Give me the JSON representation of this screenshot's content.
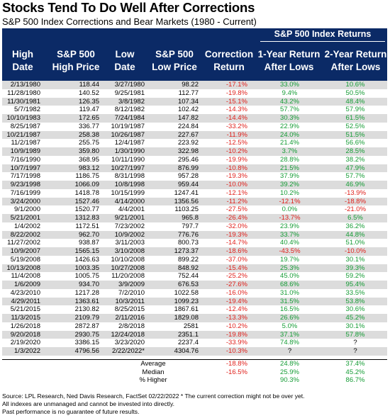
{
  "title": "Stocks Tend To Do Well After Corrections",
  "subtitle": "S&P 500 Index Corrections and Bear Markets (1980 - Current)",
  "header": {
    "group_label": "S&P 500 Index Returns",
    "columns": [
      [
        "High",
        "Date"
      ],
      [
        "S&P 500",
        "High Price"
      ],
      [
        "Low",
        "Date"
      ],
      [
        "S&P 500",
        "Low Price"
      ],
      [
        "Correction",
        "Return"
      ],
      [
        "1-Year Return",
        "After Lows"
      ],
      [
        "2-Year Return",
        "After Lows"
      ]
    ]
  },
  "colors": {
    "header_bg": "#0b2a66",
    "negative": "#e0201b",
    "positive": "#159c35",
    "stripe": "#dcdcdc"
  },
  "rows": [
    [
      "2/13/1980",
      "118.44",
      "3/27/1980",
      "98.22",
      "-17.1%",
      "33.0%",
      "10.6%"
    ],
    [
      "11/28/1980",
      "140.52",
      "9/25/1981",
      "112.77",
      "-19.8%",
      "9.4%",
      "50.5%"
    ],
    [
      "11/30/1981",
      "126.35",
      "3/8/1982",
      "107.34",
      "-15.1%",
      "43.2%",
      "48.4%"
    ],
    [
      "5/7/1982",
      "119.47",
      "8/12/1982",
      "102.42",
      "-14.3%",
      "57.7%",
      "57.9%"
    ],
    [
      "10/10/1983",
      "172.65",
      "7/24/1984",
      "147.82",
      "-14.4%",
      "30.3%",
      "61.5%"
    ],
    [
      "8/25/1987",
      "336.77",
      "10/19/1987",
      "224.84",
      "-33.2%",
      "22.9%",
      "52.5%"
    ],
    [
      "10/21/1987",
      "258.38",
      "10/26/1987",
      "227.67",
      "-11.9%",
      "24.0%",
      "51.5%"
    ],
    [
      "11/2/1987",
      "255.75",
      "12/4/1987",
      "223.92",
      "-12.5%",
      "21.4%",
      "56.6%"
    ],
    [
      "10/9/1989",
      "359.80",
      "1/30/1990",
      "322.98",
      "-10.2%",
      "3.7%",
      "28.5%"
    ],
    [
      "7/16/1990",
      "368.95",
      "10/11/1990",
      "295.46",
      "-19.9%",
      "28.8%",
      "38.2%"
    ],
    [
      "10/7/1997",
      "983.12",
      "10/27/1997",
      "876.99",
      "-10.8%",
      "21.5%",
      "47.9%"
    ],
    [
      "7/17/1998",
      "1186.75",
      "8/31/1998",
      "957.28",
      "-19.3%",
      "37.9%",
      "57.7%"
    ],
    [
      "9/23/1998",
      "1066.09",
      "10/8/1998",
      "959.44",
      "-10.0%",
      "39.2%",
      "46.9%"
    ],
    [
      "7/16/1999",
      "1418.78",
      "10/15/1999",
      "1247.41",
      "-12.1%",
      "10.2%",
      "-13.9%"
    ],
    [
      "3/24/2000",
      "1527.46",
      "4/14/2000",
      "1356.56",
      "-11.2%",
      "-12.1%",
      "-18.8%"
    ],
    [
      "9/1/2000",
      "1520.77",
      "4/4/2001",
      "1103.25",
      "-27.5%",
      "0.0%",
      "-21.0%"
    ],
    [
      "5/21/2001",
      "1312.83",
      "9/21/2001",
      "965.8",
      "-26.4%",
      "-13.7%",
      "6.5%"
    ],
    [
      "1/4/2002",
      "1172.51",
      "7/23/2002",
      "797.7",
      "-32.0%",
      "23.9%",
      "36.2%"
    ],
    [
      "8/22/2002",
      "962.70",
      "10/9/2002",
      "776.76",
      "-19.3%",
      "33.7%",
      "44.8%"
    ],
    [
      "11/27/2002",
      "938.87",
      "3/11/2003",
      "800.73",
      "-14.7%",
      "40.4%",
      "51.0%"
    ],
    [
      "10/9/2007",
      "1565.15",
      "3/10/2008",
      "1273.37",
      "-18.6%",
      "-43.5%",
      "-10.0%"
    ],
    [
      "5/19/2008",
      "1426.63",
      "10/10/2008",
      "899.22",
      "-37.0%",
      "19.7%",
      "30.1%"
    ],
    [
      "10/13/2008",
      "1003.35",
      "10/27/2008",
      "848.92",
      "-15.4%",
      "25.3%",
      "39.3%"
    ],
    [
      "11/4/2008",
      "1005.75",
      "11/20/2008",
      "752.44",
      "-25.2%",
      "45.0%",
      "59.2%"
    ],
    [
      "1/6/2009",
      "934.70",
      "3/9/2009",
      "676.53",
      "-27.6%",
      "68.6%",
      "95.4%"
    ],
    [
      "4/23/2010",
      "1217.28",
      "7/2/2010",
      "1022.58",
      "-16.0%",
      "31.0%",
      "33.5%"
    ],
    [
      "4/29/2011",
      "1363.61",
      "10/3/2011",
      "1099.23",
      "-19.4%",
      "31.5%",
      "53.8%"
    ],
    [
      "5/21/2015",
      "2130.82",
      "8/25/2015",
      "1867.61",
      "-12.4%",
      "16.5%",
      "30.6%"
    ],
    [
      "11/3/2015",
      "2109.79",
      "2/11/2016",
      "1829.08",
      "-13.3%",
      "26.6%",
      "45.2%"
    ],
    [
      "1/26/2018",
      "2872.87",
      "2/8/2018",
      "2581",
      "-10.2%",
      "5.0%",
      "30.1%"
    ],
    [
      "9/20/2018",
      "2930.75",
      "12/24/2018",
      "2351.1",
      "-19.8%",
      "37.1%",
      "57.8%"
    ],
    [
      "2/19/2020",
      "3386.15",
      "3/23/2020",
      "2237.4",
      "-33.9%",
      "74.8%",
      "?"
    ],
    [
      "1/3/2022",
      "4796.56",
      "2/22/2022*",
      "4304.76",
      "-10.3%",
      "?",
      "?"
    ]
  ],
  "stats": [
    [
      "Average",
      "-18.8%",
      "24.8%",
      "37.4%"
    ],
    [
      "Median",
      "-16.5%",
      "25.9%",
      "45.2%"
    ],
    [
      "% Higher",
      "",
      "90.3%",
      "86.7%"
    ]
  ],
  "footer": [
    "Source: LPL Research, Ned Davis Research, FactSet 02/22/2022   * The current correction might not be over yet.",
    "All indexes are unmanaged and cannot be invested into directly.",
    "Past performance is no guarantee of future results."
  ]
}
